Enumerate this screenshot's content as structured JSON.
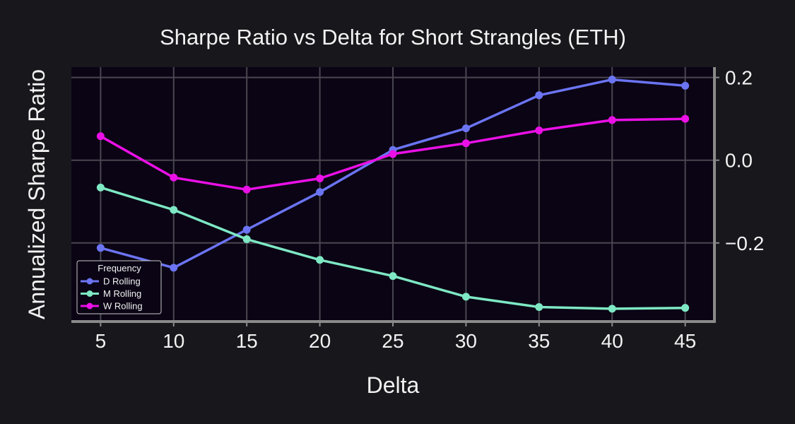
{
  "colors": {
    "background": "#18171c",
    "plot_background": "#0a0414",
    "grid": "#4a4650",
    "spine": "#8a8a8a",
    "text": "#f2f2f2"
  },
  "chart_data": {
    "type": "line",
    "title": "Sharpe Ratio vs Delta for Short Strangles (ETH)",
    "xlabel": "Delta",
    "ylabel": "Annualized Sharpe Ratio",
    "x": [
      5,
      10,
      15,
      20,
      25,
      30,
      35,
      40,
      45
    ],
    "xlim": [
      3,
      47
    ],
    "ylim": [
      -0.39,
      0.225
    ],
    "x_ticks": [
      "5",
      "10",
      "15",
      "20",
      "25",
      "30",
      "35",
      "40",
      "45"
    ],
    "y_ticks": [
      {
        "value": 0.2,
        "label": "0.2"
      },
      {
        "value": 0.0,
        "label": "0.0"
      },
      {
        "value": -0.2,
        "label": "−0.2"
      }
    ],
    "y_axis_side": "right",
    "grid": true,
    "legend": {
      "title": "Frequency",
      "placement": "lower-left"
    },
    "series": [
      {
        "name": "D Rolling",
        "color": "#6b74f2",
        "values": [
          -0.212,
          -0.26,
          -0.168,
          -0.077,
          0.025,
          0.077,
          0.157,
          0.195,
          0.18
        ]
      },
      {
        "name": "M Rolling",
        "color": "#7ee8c4",
        "values": [
          -0.066,
          -0.12,
          -0.191,
          -0.241,
          -0.28,
          -0.33,
          -0.355,
          -0.359,
          -0.357
        ]
      },
      {
        "name": "W Rolling",
        "color": "#ea10e6",
        "values": [
          0.058,
          -0.042,
          -0.071,
          -0.044,
          0.015,
          0.041,
          0.072,
          0.097,
          0.1
        ]
      }
    ]
  }
}
